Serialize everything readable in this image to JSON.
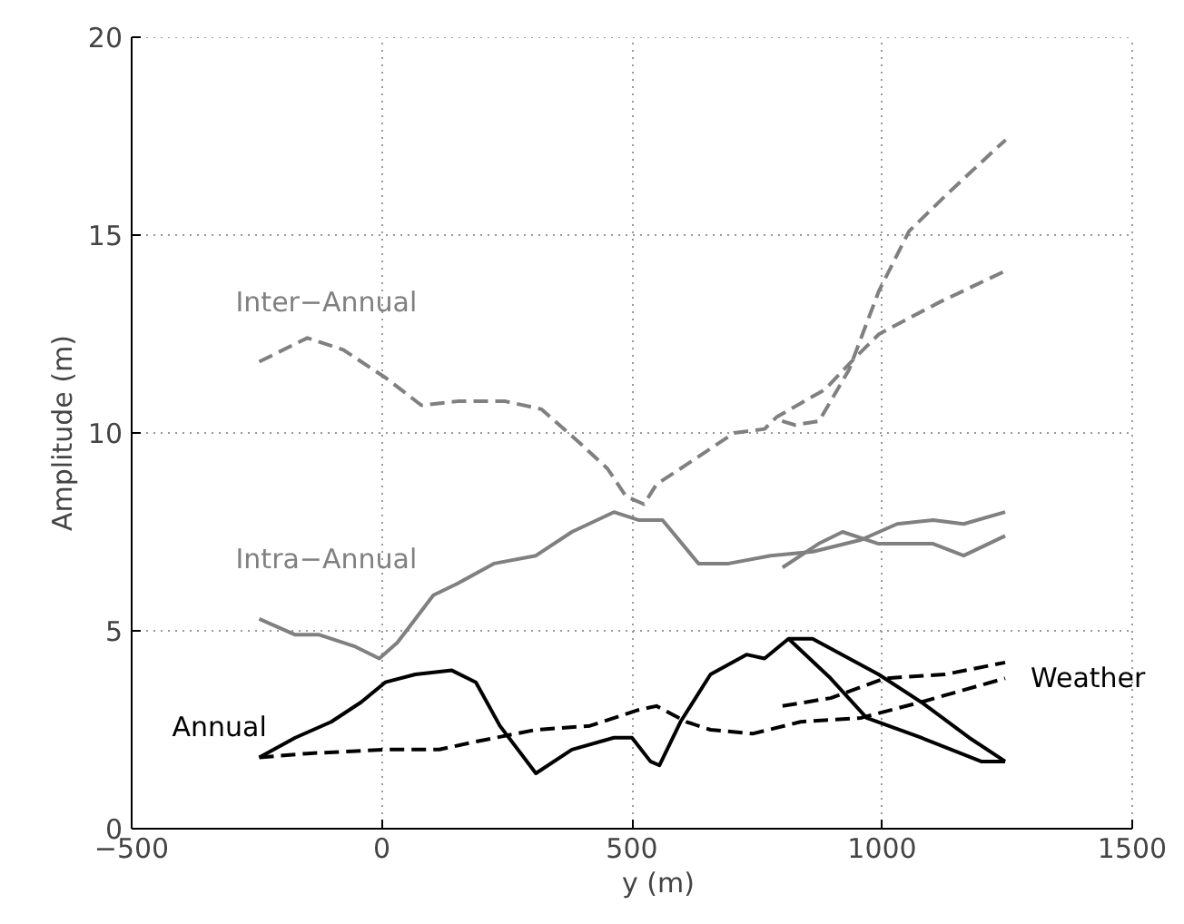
{
  "chart_data": {
    "type": "line",
    "xlabel": "y (m)",
    "ylabel": "Amplitude (m)",
    "xlim": [
      -500,
      1500
    ],
    "ylim": [
      0,
      20
    ],
    "xticks": [
      -500,
      0,
      500,
      1000,
      1500
    ],
    "yticks": [
      0,
      5,
      10,
      15,
      20
    ],
    "grid": true,
    "series": [
      {
        "name": "Inter−Annual",
        "color": "#808080",
        "line_style": "dashed",
        "x": [
          -245,
          -149,
          -77,
          7,
          79,
          151,
          247,
          319,
          391,
          451,
          488,
          524,
          549,
          633,
          704,
          765,
          789,
          886,
          946,
          994,
          1114,
          1247
        ],
        "values": [
          11.8,
          12.4,
          12.1,
          11.4,
          10.7,
          10.8,
          10.8,
          10.6,
          9.8,
          9.1,
          8.4,
          8.2,
          8.7,
          9.4,
          10.0,
          10.1,
          10.4,
          11.1,
          11.9,
          12.5,
          13.3,
          14.1
        ]
      },
      {
        "color": "#808080",
        "line_style": "dashed",
        "x": [
          800,
          826,
          874,
          934,
          994,
          1054,
          1127,
          1229,
          1247
        ],
        "values": [
          10.3,
          10.2,
          10.3,
          11.6,
          13.6,
          15.1,
          16.0,
          17.2,
          17.4
        ]
      },
      {
        "name": "Intra−Annual",
        "color": "#808080",
        "line_style": "solid",
        "x": [
          -245,
          -173,
          -125,
          -53,
          -5,
          31,
          67,
          103,
          152,
          224,
          308,
          380,
          464,
          513,
          561,
          633,
          693,
          777,
          862,
          958,
          1030,
          1102,
          1163,
          1246
        ],
        "values": [
          5.3,
          4.9,
          4.9,
          4.6,
          4.3,
          4.7,
          5.3,
          5.9,
          6.2,
          6.7,
          6.9,
          7.5,
          8.0,
          7.8,
          7.8,
          6.7,
          6.7,
          6.9,
          7.0,
          7.3,
          7.7,
          7.8,
          7.7,
          8.0
        ]
      },
      {
        "color": "#808080",
        "line_style": "solid",
        "x": [
          801,
          873,
          921,
          993,
          1102,
          1163,
          1246
        ],
        "values": [
          6.6,
          7.2,
          7.5,
          7.2,
          7.2,
          6.9,
          7.4
        ]
      },
      {
        "name": "Annual",
        "color": "#000000",
        "line_style": "solid",
        "x": [
          -245,
          -173,
          -101,
          -41,
          7,
          67,
          140,
          188,
          236,
          308,
          380,
          464,
          500,
          537,
          555,
          597,
          657,
          729,
          765,
          813,
          861,
          993,
          1078,
          1174,
          1246
        ],
        "values": [
          1.8,
          2.3,
          2.7,
          3.2,
          3.7,
          3.9,
          4.0,
          3.7,
          2.6,
          1.4,
          2.0,
          2.3,
          2.3,
          1.7,
          1.6,
          2.7,
          3.9,
          4.4,
          4.3,
          4.8,
          4.8,
          3.9,
          3.2,
          2.3,
          1.7
        ]
      },
      {
        "color": "#000000",
        "line_style": "solid",
        "x": [
          813,
          897,
          969,
          1078,
          1198,
          1246
        ],
        "values": [
          4.8,
          3.8,
          2.8,
          2.3,
          1.7,
          1.7
        ]
      },
      {
        "name": "Weather",
        "color": "#000000",
        "line_style": "dashed",
        "x": [
          -245,
          -149,
          7,
          115,
          188,
          308,
          416,
          513,
          549,
          609,
          657,
          741,
          837,
          958,
          1078,
          1246
        ],
        "values": [
          1.8,
          1.9,
          2.0,
          2.0,
          2.2,
          2.5,
          2.6,
          3.0,
          3.1,
          2.7,
          2.5,
          2.4,
          2.7,
          2.8,
          3.2,
          3.8
        ]
      },
      {
        "color": "#000000",
        "line_style": "dashed",
        "x": [
          801,
          897,
          1006,
          1126,
          1246
        ],
        "values": [
          3.1,
          3.3,
          3.8,
          3.9,
          4.2
        ]
      }
    ]
  }
}
